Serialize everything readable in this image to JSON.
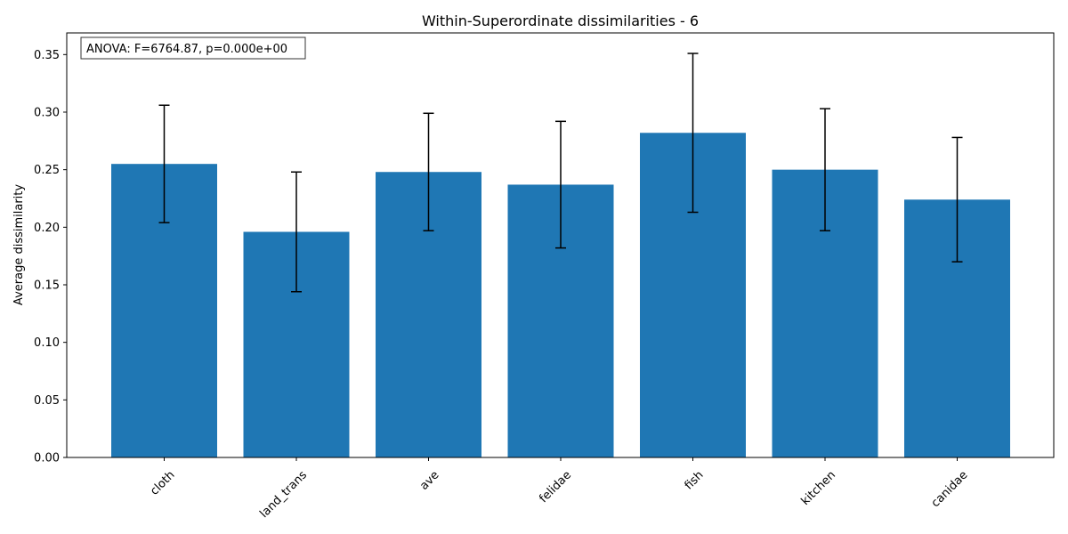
{
  "chart_data": {
    "type": "bar",
    "title": "Within-Superordinate dissimilarities - 6",
    "xlabel": "",
    "ylabel": "Average dissimilarity",
    "annotation": "ANOVA: F=6764.87, p=0.000e+00",
    "categories": [
      "cloth",
      "land_trans",
      "ave",
      "felidae",
      "fish",
      "kitchen",
      "canidae"
    ],
    "values": [
      0.255,
      0.196,
      0.248,
      0.237,
      0.282,
      0.25,
      0.224
    ],
    "errors": [
      0.051,
      0.052,
      0.051,
      0.055,
      0.069,
      0.053,
      0.054
    ],
    "ylim": [
      0,
      0.3688
    ],
    "yticks": [
      0.0,
      0.05,
      0.1,
      0.15,
      0.2,
      0.25,
      0.3,
      0.35
    ],
    "ytick_labels": [
      "0.00",
      "0.05",
      "0.10",
      "0.15",
      "0.20",
      "0.25",
      "0.30",
      "0.35"
    ],
    "bar_color": "#1f77b4",
    "error_color": "#000000",
    "grid": false,
    "legend": false
  }
}
